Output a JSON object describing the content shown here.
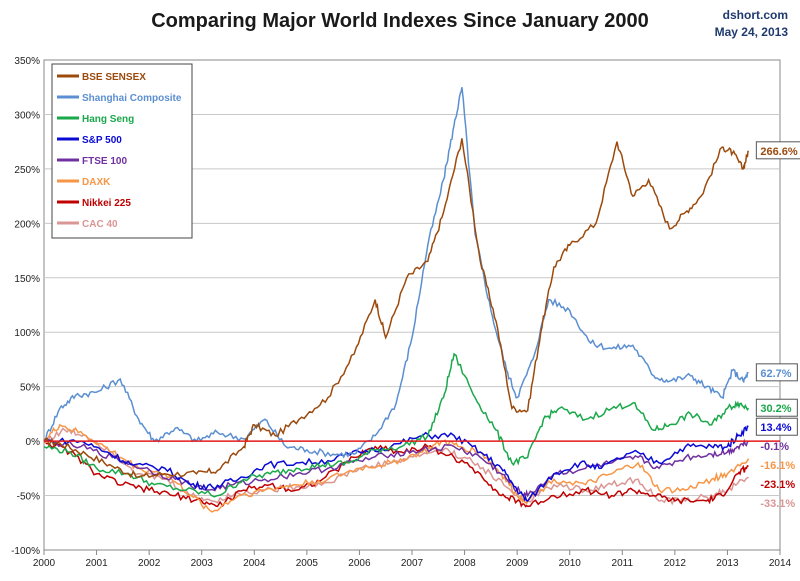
{
  "header": {
    "title": "Comparing Major World Indexes Since January 2000",
    "source": "dshort.com",
    "date": "May 24, 2013"
  },
  "chart_data": {
    "type": "line",
    "title": "Comparing Major World Indexes Since January 2000",
    "xlim": [
      2000,
      2014
    ],
    "ylim": [
      -100,
      350
    ],
    "x_ticks": [
      2000,
      2001,
      2002,
      2003,
      2004,
      2005,
      2006,
      2007,
      2008,
      2009,
      2010,
      2011,
      2012,
      2013,
      2014
    ],
    "x_tick_labels": [
      "2000",
      "2001",
      "2002",
      "2003",
      "2004",
      "2005",
      "2006",
      "2007",
      "2008",
      "2009",
      "2010",
      "2011",
      "2012",
      "2013",
      "2014"
    ],
    "y_ticks": [
      -100,
      -50,
      0,
      50,
      100,
      150,
      200,
      250,
      300,
      350
    ],
    "y_tick_labels": [
      "-100%",
      "-50%",
      "0%",
      "50%",
      "100%",
      "150%",
      "200%",
      "250%",
      "300%",
      "350%"
    ],
    "grid": "horizontal",
    "legend_position": "top-left",
    "reference_line": {
      "y": 0,
      "color": "#e31a1c"
    },
    "series": [
      {
        "name": "BSE SENSEX",
        "color": "#9c4a0c",
        "end_label": "266.6%",
        "x": [
          2000,
          2000.3,
          2000.8,
          2001.3,
          2001.8,
          2002.3,
          2002.9,
          2003.3,
          2003.8,
          2004.0,
          2004.4,
          2004.9,
          2005.4,
          2005.9,
          2006.3,
          2006.5,
          2006.9,
          2007.3,
          2007.6,
          2007.95,
          2008.3,
          2008.6,
          2008.9,
          2009.2,
          2009.45,
          2009.7,
          2010.0,
          2010.5,
          2010.9,
          2011.2,
          2011.5,
          2011.9,
          2012.2,
          2012.5,
          2012.9,
          2013.1,
          2013.3,
          2013.4
        ],
        "values": [
          0,
          -2,
          -12,
          -23,
          -33,
          -30,
          -30,
          -27,
          -5,
          15,
          5,
          22,
          40,
          80,
          130,
          95,
          150,
          165,
          210,
          278,
          165,
          110,
          30,
          28,
          100,
          160,
          180,
          200,
          275,
          225,
          240,
          195,
          210,
          225,
          270,
          265,
          250,
          266.6
        ]
      },
      {
        "name": "Shanghai Composite",
        "color": "#5b8fd1",
        "end_label": "62.7%",
        "x": [
          2000,
          2000.3,
          2000.6,
          2001.0,
          2001.45,
          2001.8,
          2002.1,
          2002.5,
          2002.9,
          2003.3,
          2003.8,
          2004.2,
          2004.6,
          2005.0,
          2005.5,
          2005.9,
          2006.3,
          2006.7,
          2007.0,
          2007.3,
          2007.6,
          2007.8,
          2007.95,
          2008.2,
          2008.5,
          2008.8,
          2009.0,
          2009.3,
          2009.6,
          2010.0,
          2010.4,
          2010.8,
          2011.2,
          2011.6,
          2011.9,
          2012.3,
          2012.6,
          2012.9,
          2013.1,
          2013.3,
          2013.4
        ],
        "values": [
          0,
          30,
          42,
          45,
          57,
          20,
          0,
          12,
          0,
          8,
          2,
          20,
          -5,
          -8,
          -12,
          -12,
          5,
          35,
          95,
          180,
          240,
          290,
          325,
          190,
          120,
          65,
          40,
          75,
          130,
          120,
          90,
          85,
          88,
          60,
          55,
          60,
          50,
          40,
          65,
          55,
          62.7
        ]
      },
      {
        "name": "Hang Seng",
        "color": "#1aa84a",
        "end_label": "30.2%",
        "x": [
          2000,
          2000.5,
          2001.0,
          2001.6,
          2002.1,
          2002.7,
          2003.3,
          2003.8,
          2004.3,
          2004.8,
          2005.3,
          2005.8,
          2006.3,
          2006.8,
          2007.3,
          2007.6,
          2007.8,
          2008.2,
          2008.6,
          2008.9,
          2009.2,
          2009.5,
          2009.8,
          2010.3,
          2010.8,
          2011.2,
          2011.6,
          2011.9,
          2012.3,
          2012.7,
          2013.0,
          2013.2,
          2013.4
        ],
        "values": [
          -5,
          -10,
          -25,
          -30,
          -40,
          -45,
          -50,
          -35,
          -30,
          -25,
          -22,
          -20,
          -8,
          -5,
          5,
          40,
          80,
          40,
          10,
          -20,
          -15,
          20,
          30,
          20,
          30,
          35,
          10,
          15,
          25,
          15,
          30,
          35,
          30.2
        ]
      },
      {
        "name": "S&P 500",
        "color": "#0a0ad4",
        "end_label": "13.4%",
        "x": [
          2000,
          2000.7,
          2001.2,
          2001.7,
          2002.3,
          2002.8,
          2003.2,
          2003.7,
          2004.2,
          2004.8,
          2005.4,
          2006.0,
          2006.6,
          2007.2,
          2007.8,
          2008.3,
          2008.7,
          2009.0,
          2009.2,
          2009.7,
          2010.2,
          2010.6,
          2011.2,
          2011.7,
          2012.2,
          2012.7,
          2013.0,
          2013.2,
          2013.4
        ],
        "values": [
          0,
          0,
          -10,
          -22,
          -25,
          -40,
          -42,
          -35,
          -22,
          -20,
          -18,
          -10,
          -5,
          5,
          5,
          -10,
          -25,
          -45,
          -55,
          -30,
          -20,
          -25,
          -10,
          -20,
          -5,
          -5,
          -5,
          5,
          13.4
        ]
      },
      {
        "name": "FTSE 100",
        "color": "#7030a0",
        "end_label": "-0.1%",
        "x": [
          2000,
          2000.7,
          2001.3,
          2001.9,
          2002.5,
          2003.1,
          2003.6,
          2004.2,
          2004.8,
          2005.4,
          2006.0,
          2006.6,
          2007.2,
          2007.8,
          2008.3,
          2008.7,
          2009.0,
          2009.2,
          2009.7,
          2010.3,
          2010.8,
          2011.3,
          2011.7,
          2012.2,
          2012.7,
          2013.0,
          2013.2,
          2013.4
        ],
        "values": [
          0,
          -5,
          -15,
          -25,
          -35,
          -45,
          -40,
          -35,
          -30,
          -25,
          -18,
          -12,
          -8,
          -5,
          -15,
          -30,
          -45,
          -50,
          -30,
          -25,
          -20,
          -15,
          -25,
          -15,
          -12,
          -10,
          -5,
          -0.1
        ]
      },
      {
        "name": "DAXK",
        "color": "#f79646",
        "end_label": "-16.1%",
        "x": [
          2000,
          2000.3,
          2000.8,
          2001.3,
          2001.8,
          2002.3,
          2002.8,
          2003.2,
          2003.7,
          2004.2,
          2004.8,
          2005.4,
          2006.0,
          2006.6,
          2007.2,
          2007.6,
          2007.9,
          2008.3,
          2008.7,
          2009.0,
          2009.2,
          2009.7,
          2010.3,
          2010.8,
          2011.3,
          2011.7,
          2012.2,
          2012.7,
          2013.0,
          2013.4
        ],
        "values": [
          0,
          15,
          5,
          -10,
          -25,
          -30,
          -50,
          -65,
          -50,
          -45,
          -40,
          -35,
          -25,
          -20,
          -10,
          0,
          -5,
          -10,
          -30,
          -50,
          -55,
          -35,
          -40,
          -30,
          -20,
          -45,
          -45,
          -35,
          -30,
          -16.1
        ]
      },
      {
        "name": "Nikkei 225",
        "color": "#c00000",
        "end_label": "-23.1%",
        "x": [
          2000,
          2000.5,
          2001.0,
          2001.5,
          2002.0,
          2002.5,
          2003.0,
          2003.3,
          2003.8,
          2004.3,
          2004.8,
          2005.3,
          2005.9,
          2006.3,
          2006.8,
          2007.3,
          2007.8,
          2008.3,
          2008.7,
          2009.0,
          2009.2,
          2009.7,
          2010.3,
          2010.8,
          2011.2,
          2011.6,
          2012.0,
          2012.6,
          2012.9,
          2013.2,
          2013.4
        ],
        "values": [
          0,
          -10,
          -30,
          -40,
          -45,
          -50,
          -55,
          -60,
          -45,
          -40,
          -45,
          -35,
          -15,
          -5,
          -10,
          -5,
          -15,
          -30,
          -50,
          -55,
          -60,
          -50,
          -45,
          -50,
          -45,
          -50,
          -55,
          -55,
          -50,
          -30,
          -23.1
        ]
      },
      {
        "name": "CAC 40",
        "color": "#d99694",
        "end_label": "-33.1%",
        "x": [
          2000,
          2000.4,
          2000.8,
          2001.3,
          2001.8,
          2002.3,
          2002.8,
          2003.2,
          2003.7,
          2004.2,
          2004.8,
          2005.4,
          2006.0,
          2006.6,
          2007.2,
          2007.6,
          2008.0,
          2008.5,
          2009.0,
          2009.2,
          2009.7,
          2010.3,
          2010.8,
          2011.3,
          2011.7,
          2012.2,
          2012.7,
          2013.0,
          2013.4
        ],
        "values": [
          0,
          10,
          5,
          -10,
          -30,
          -35,
          -50,
          -55,
          -48,
          -45,
          -42,
          -38,
          -25,
          -20,
          -12,
          -8,
          -15,
          -30,
          -50,
          -55,
          -40,
          -45,
          -40,
          -35,
          -55,
          -55,
          -50,
          -45,
          -33.1
        ]
      }
    ]
  }
}
